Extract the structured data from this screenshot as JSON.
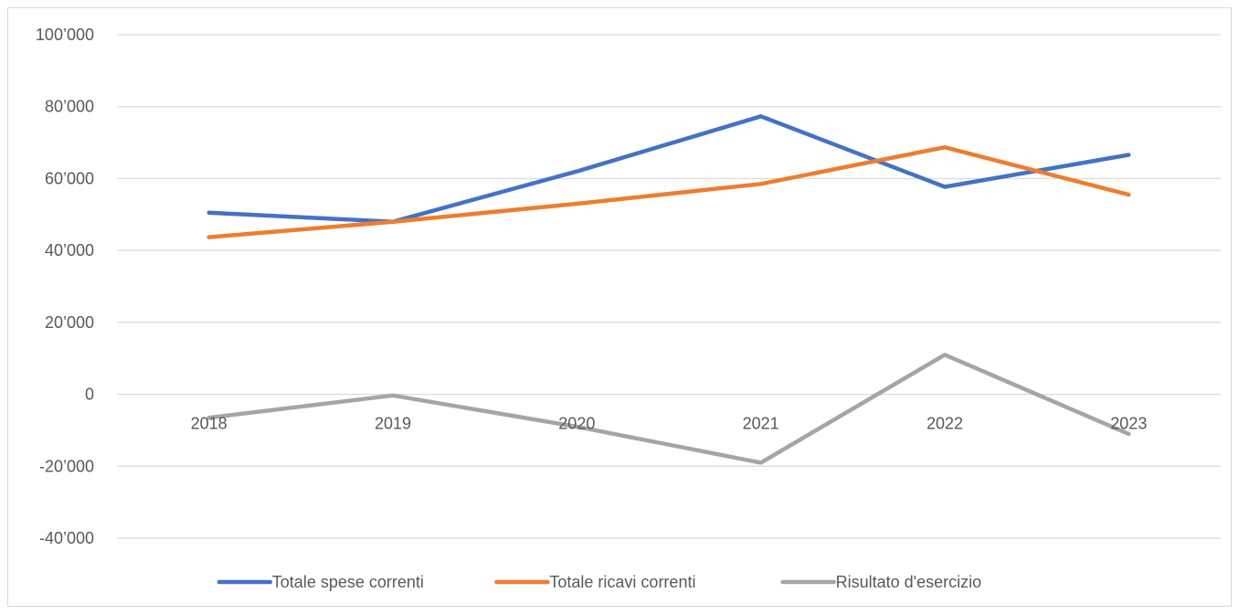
{
  "chart_data": {
    "type": "line",
    "x": [
      "2018",
      "2019",
      "2020",
      "2021",
      "2022",
      "2023"
    ],
    "series": [
      {
        "name": "Totale spese correnti",
        "color": "#4472C4",
        "values": [
          50500,
          48000,
          62000,
          77300,
          57700,
          66600
        ]
      },
      {
        "name": "Totale ricavi correnti",
        "color": "#ED7D31",
        "values": [
          43700,
          48000,
          53000,
          58500,
          68700,
          55500
        ]
      },
      {
        "name": "Risultato d'esercizio",
        "color": "#A5A5A5",
        "values": [
          -6500,
          -300,
          -9000,
          -19000,
          11000,
          -11000
        ]
      }
    ],
    "y_ticks": [
      "100’000",
      "80’000",
      "60’000",
      "40’000",
      "20’000",
      "0",
      "-20’000",
      "-40’000"
    ],
    "y_tick_values": [
      100000,
      80000,
      60000,
      40000,
      20000,
      0,
      -20000,
      -40000
    ],
    "ylim": [
      -40000,
      100000
    ],
    "title": "",
    "xlabel": "",
    "ylabel": "",
    "grid": true,
    "legend_position": "bottom",
    "gridline_color": "#d9d9d9"
  }
}
